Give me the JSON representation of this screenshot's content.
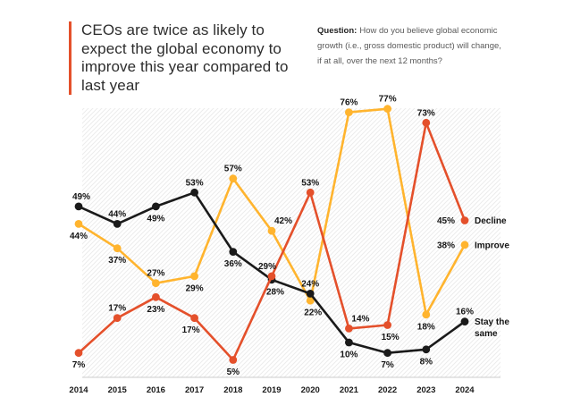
{
  "header": {
    "title": "CEOs are twice as likely to expect the global economy to improve this year compared to last year",
    "title_lines": [
      "CEOs are twice as likely to",
      "expect the global economy to",
      "improve this year compared to",
      "last year"
    ],
    "accent_color": "#E4502B"
  },
  "question": {
    "label": "Question:",
    "text": "How do you believe global economic growth (i.e., gross domestic product) will change, if at all, over the next 12 months?",
    "text_lines": [
      "How do you believe global economic",
      "growth (i.e., gross domestic product) will change,",
      "if at all, over the next 12 months?"
    ]
  },
  "chart_data": {
    "type": "line",
    "x": [
      2014,
      2015,
      2016,
      2017,
      2018,
      2019,
      2020,
      2021,
      2022,
      2023,
      2024
    ],
    "unit": "%",
    "ylim": [
      0,
      80
    ],
    "grid": "none",
    "plot_background": "diagonal-hatch",
    "hatch_color": "#ececec",
    "axis_line_color": "#cccccc",
    "label_color": "#141414",
    "legend_position": "right-end-of-lines",
    "series": [
      {
        "name": "Decline",
        "name_lines": [
          "Decline"
        ],
        "color": "#E4502B",
        "values": [
          7,
          17,
          23,
          17,
          5,
          29,
          53,
          14,
          15,
          73,
          45
        ],
        "label_pos": [
          "below",
          "above",
          "below",
          "below",
          "below",
          "above",
          "above",
          "above",
          "below",
          "above",
          "left"
        ],
        "label_dx": [
          0,
          0,
          0,
          -4,
          0,
          -5,
          0,
          13,
          3,
          0,
          0
        ]
      },
      {
        "name": "Improve",
        "name_lines": [
          "Improve"
        ],
        "color": "#FFB42E",
        "values": [
          44,
          37,
          27,
          29,
          57,
          42,
          22,
          76,
          77,
          18,
          38
        ],
        "label_pos": [
          "below",
          "below",
          "above",
          "below",
          "above",
          "above",
          "below",
          "above",
          "above",
          "below",
          "left"
        ],
        "label_dx": [
          0,
          0,
          0,
          0,
          0,
          13,
          3,
          0,
          0,
          0,
          0
        ]
      },
      {
        "name": "Stay the same",
        "name_lines": [
          "Stay the",
          "same"
        ],
        "color": "#1a1a1a",
        "values": [
          49,
          44,
          49,
          53,
          36,
          28,
          24,
          10,
          7,
          8,
          16
        ],
        "label_pos": [
          "above",
          "above",
          "below",
          "above",
          "below",
          "below",
          "above",
          "below",
          "below",
          "below",
          "above"
        ],
        "label_dx": [
          3,
          0,
          0,
          0,
          0,
          4,
          0,
          0,
          0,
          0,
          0
        ]
      }
    ]
  }
}
